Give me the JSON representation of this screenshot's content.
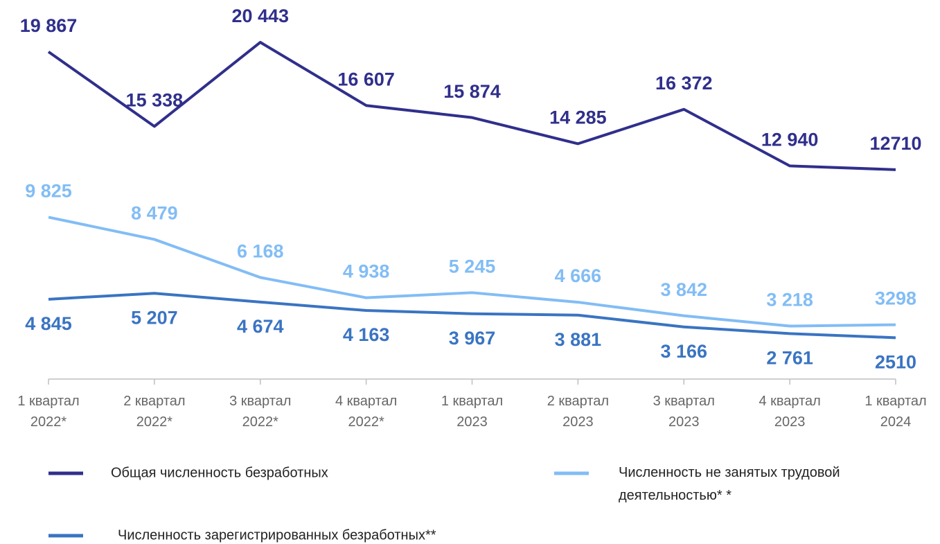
{
  "chart_data": {
    "type": "line",
    "categories": [
      "1 квартал\n2022*",
      "2 квартал\n2022*",
      "3 квартал\n2022*",
      "4 квартал\n2022*",
      "1 квартал\n2023",
      "2 квартал\n2023",
      "3 квартал\n2023",
      "4 квартал\n2023",
      "1 квартал\n2024"
    ],
    "series": [
      {
        "name": "Общая численность безработных",
        "color": "#302f8c",
        "values": [
          19867,
          15338,
          20443,
          16607,
          15874,
          14285,
          16372,
          12940,
          12710
        ],
        "value_labels": [
          "19 867",
          "15 338",
          "20 443",
          "16 607",
          "15 874",
          "14 285",
          "16 372",
          "12 940",
          "12710"
        ],
        "label_position": "above"
      },
      {
        "name": "Численность не занятых трудовой\nдеятельностью* *",
        "color": "#82bdf5",
        "values": [
          9825,
          8479,
          6168,
          4938,
          5245,
          4666,
          3842,
          3218,
          3298
        ],
        "value_labels": [
          "9 825",
          "8 479",
          "6 168",
          "4 938",
          "5 245",
          "4 666",
          "3 842",
          "3 218",
          "3298"
        ],
        "label_position": "above"
      },
      {
        "name": "Численность зарегистрированных безработных**",
        "color": "#3a74c2",
        "values": [
          4845,
          5207,
          4674,
          4163,
          3967,
          3881,
          3166,
          2761,
          2510
        ],
        "value_labels": [
          "4 845",
          "5 207",
          "4 674",
          "4 163",
          "3 967",
          "3 881",
          "3 166",
          "2 761",
          "2510"
        ],
        "label_position": "below"
      }
    ],
    "ylim": [
      0,
      22000
    ],
    "grid": false,
    "legend": "bottom"
  }
}
